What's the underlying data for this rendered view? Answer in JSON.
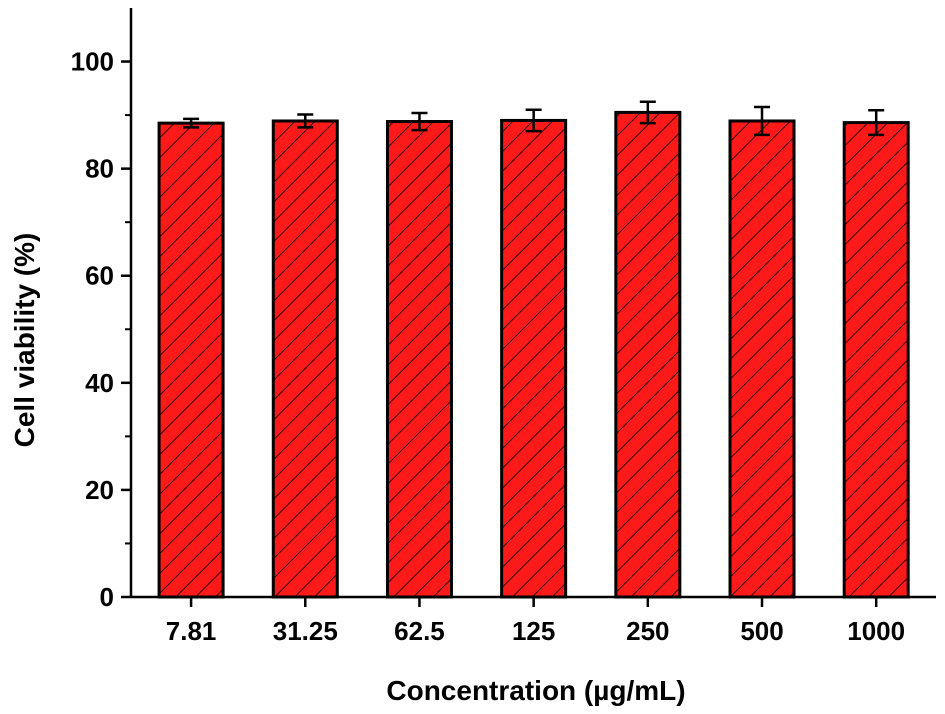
{
  "chart_data": {
    "type": "bar",
    "title": "",
    "xlabel": "Concentration (µg/mL)",
    "ylabel": "Cell viability (%)",
    "categories": [
      "7.81",
      "31.25",
      "62.5",
      "125",
      "250",
      "500",
      "1000"
    ],
    "values": [
      88.5,
      88.9,
      88.8,
      89.0,
      90.5,
      88.9,
      88.6
    ],
    "errors": [
      0.8,
      1.2,
      1.6,
      2.0,
      2.0,
      2.6,
      2.3
    ],
    "ylim": [
      0,
      110
    ],
    "yticks": [
      0,
      20,
      40,
      60,
      80,
      100
    ],
    "grid": false,
    "legend": "none",
    "bar_fill": "#ff1a1a",
    "bar_pattern": "diagonal-hatch",
    "bar_edge": "#000000",
    "error_bars": true
  }
}
